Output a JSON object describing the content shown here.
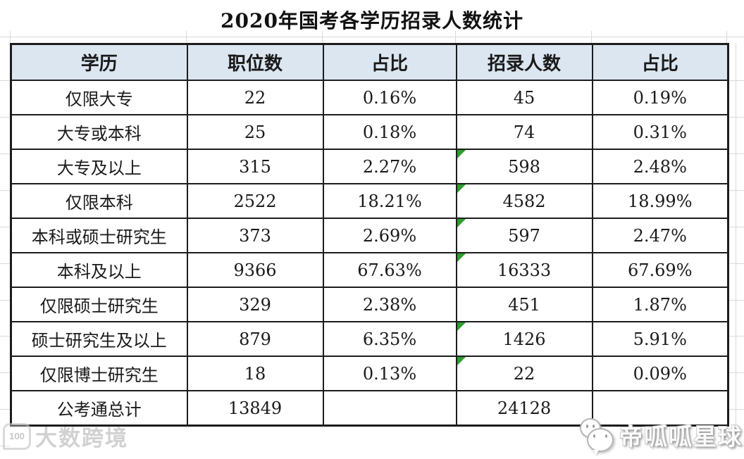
{
  "title": "2020年国考各学历招录人数统计",
  "chart_data": {
    "type": "table",
    "title": "2020年国考各学历招录人数统计",
    "columns": [
      "学历",
      "职位数",
      "占比",
      "招录人数",
      "占比"
    ],
    "rows": [
      [
        "仅限大专",
        "22",
        "0.16%",
        "45",
        "0.19%"
      ],
      [
        "大专或本科",
        "25",
        "0.18%",
        "74",
        "0.31%"
      ],
      [
        "大专及以上",
        "315",
        "2.27%",
        "598",
        "2.48%"
      ],
      [
        "仅限本科",
        "2522",
        "18.21%",
        "4582",
        "18.99%"
      ],
      [
        "本科或硕士研究生",
        "373",
        "2.69%",
        "597",
        "2.47%"
      ],
      [
        "本科及以上",
        "9366",
        "67.63%",
        "16333",
        "67.69%"
      ],
      [
        "仅限硕士研究生",
        "329",
        "2.38%",
        "451",
        "1.87%"
      ],
      [
        "硕士研究生及以上",
        "879",
        "6.35%",
        "1426",
        "5.91%"
      ],
      [
        "仅限博士研究生",
        "18",
        "0.13%",
        "22",
        "0.09%"
      ],
      [
        "公考通总计",
        "13849",
        "",
        "24128",
        ""
      ]
    ],
    "comment_marker_cells": [
      [
        2,
        3
      ],
      [
        3,
        3
      ],
      [
        4,
        3
      ],
      [
        5,
        3
      ],
      [
        7,
        3
      ],
      [
        8,
        3
      ]
    ],
    "header_bg": "#dce6f1",
    "marker_color": "#2e9e2e"
  },
  "watermarks": {
    "bottom_left": {
      "badge_text": "100",
      "text": "大数跨境"
    },
    "bottom_right": {
      "text": "帝呱呱星球"
    }
  }
}
